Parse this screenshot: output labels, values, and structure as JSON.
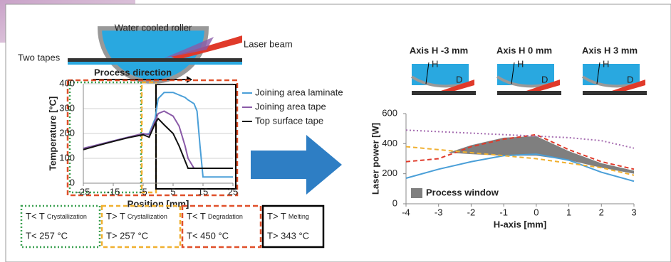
{
  "chart_data": [
    {
      "type": "line",
      "x_label": "Position [mm]",
      "y_label": "Temperature [°C]",
      "grid": true,
      "x": [
        -25,
        -20,
        -15,
        -10,
        -5,
        -3,
        -1,
        0,
        2,
        5,
        7,
        9,
        10,
        12,
        13,
        14,
        15,
        25
      ],
      "series": [
        {
          "name": "Joining area laminate",
          "color": "#4a9fd8",
          "values": [
            140,
            155,
            170,
            185,
            195,
            200,
            260,
            340,
            365,
            365,
            355,
            345,
            335,
            320,
            290,
            150,
            25,
            25
          ]
        },
        {
          "name": "Joining area tape",
          "color": "#8a5aa8",
          "values": [
            140,
            155,
            170,
            185,
            200,
            195,
            250,
            280,
            290,
            270,
            230,
            150,
            100,
            60,
            60,
            60,
            60,
            60
          ]
        },
        {
          "name": "Top surface tape",
          "color": "#111111",
          "values": [
            135,
            152,
            168,
            183,
            195,
            185,
            240,
            260,
            235,
            200,
            150,
            90,
            60,
            60,
            60,
            60,
            60,
            60
          ]
        }
      ],
      "xlim": [
        -25,
        25
      ],
      "xticks": [
        -25,
        -15,
        -5,
        5,
        15,
        25
      ],
      "ylim": [
        0,
        400
      ],
      "yticks": [
        0,
        100,
        200,
        300,
        400
      ]
    },
    {
      "type": "line",
      "x_label": "H-axis [mm]",
      "y_label": "Laser power [W]",
      "grid": false,
      "x": [
        -4,
        -3,
        -2,
        -1,
        0,
        1,
        2,
        3
      ],
      "series": [
        {
          "color": "#4a9fd8",
          "line_style": "solid",
          "values": [
            170,
            230,
            280,
            320,
            330,
            290,
            210,
            150
          ]
        },
        {
          "color": "#e03a2a",
          "line_style": "dashed",
          "values": [
            280,
            300,
            380,
            430,
            460,
            360,
            280,
            230
          ]
        },
        {
          "color": "#a56cb0",
          "line_style": "dotted",
          "values": [
            490,
            480,
            470,
            460,
            450,
            440,
            420,
            370
          ]
        },
        {
          "color": "#f0b030",
          "line_style": "dashed",
          "values": [
            380,
            360,
            340,
            320,
            300,
            270,
            240,
            190
          ]
        }
      ],
      "area": {
        "name": "Process window",
        "color": "#7f7f7f",
        "x": [
          -2.7,
          -2,
          -1,
          0,
          1,
          2,
          3
        ],
        "upper": [
          340,
          390,
          440,
          450,
          350,
          270,
          220
        ],
        "lower": [
          340,
          330,
          320,
          320,
          290,
          240,
          200
        ]
      },
      "xlim": [
        -4,
        3
      ],
      "xticks": [
        -4,
        -3,
        -2,
        -1,
        0,
        1,
        2,
        3
      ],
      "ylim": [
        0,
        600
      ],
      "yticks": [
        0,
        200,
        400,
        600
      ]
    }
  ],
  "diagram": {
    "roller": "Water cooled roller",
    "laser": "Laser beam",
    "tapes": "Two tapes",
    "direction": "Process direction",
    "panels": [
      {
        "title": "Axis H -3 mm",
        "h": "H",
        "d": "D"
      },
      {
        "title": "Axis H 0 mm",
        "h": "H",
        "d": "D"
      },
      {
        "title": "Axis H 3 mm",
        "h": "H",
        "d": "D"
      }
    ],
    "boxes": [
      {
        "rel": "T< T",
        "sub": "Crystallization",
        "limit": "T< 257 °C"
      },
      {
        "rel": "T> T",
        "sub": "Crystallization",
        "limit": "T> 257 °C"
      },
      {
        "rel": "T< T",
        "sub": "Degradation",
        "limit": "T< 450 °C"
      },
      {
        "rel": "T> T",
        "sub": "Melting",
        "limit": "T> 343 °C"
      }
    ]
  }
}
